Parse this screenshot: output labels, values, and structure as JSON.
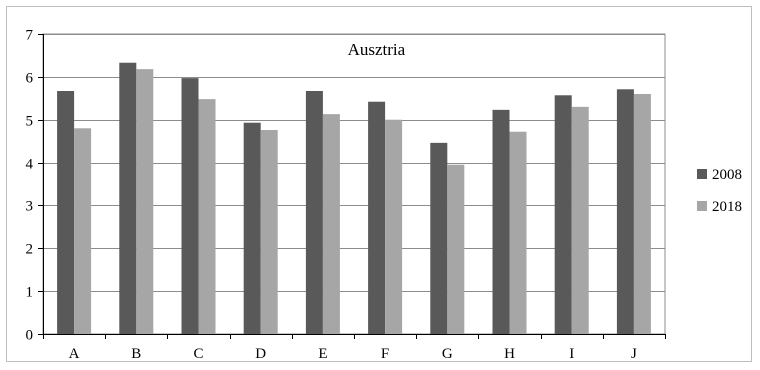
{
  "chart_data": {
    "type": "bar",
    "title": "Ausztria",
    "xlabel": "",
    "ylabel": "",
    "categories": [
      "A",
      "B",
      "C",
      "D",
      "E",
      "F",
      "G",
      "H",
      "I",
      "J"
    ],
    "series": [
      {
        "name": "2008",
        "color": "#595959",
        "values": [
          5.67,
          6.33,
          5.97,
          4.93,
          5.67,
          5.42,
          4.46,
          5.23,
          5.57,
          5.71
        ]
      },
      {
        "name": "2018",
        "color": "#a6a6a6",
        "values": [
          4.8,
          6.18,
          5.48,
          4.76,
          5.13,
          5.0,
          3.95,
          4.72,
          5.3,
          5.6
        ]
      }
    ],
    "ylim": [
      0,
      7
    ],
    "yticks": [
      0,
      1,
      2,
      3,
      4,
      5,
      6,
      7
    ],
    "grid": true,
    "legend_position": "right"
  }
}
